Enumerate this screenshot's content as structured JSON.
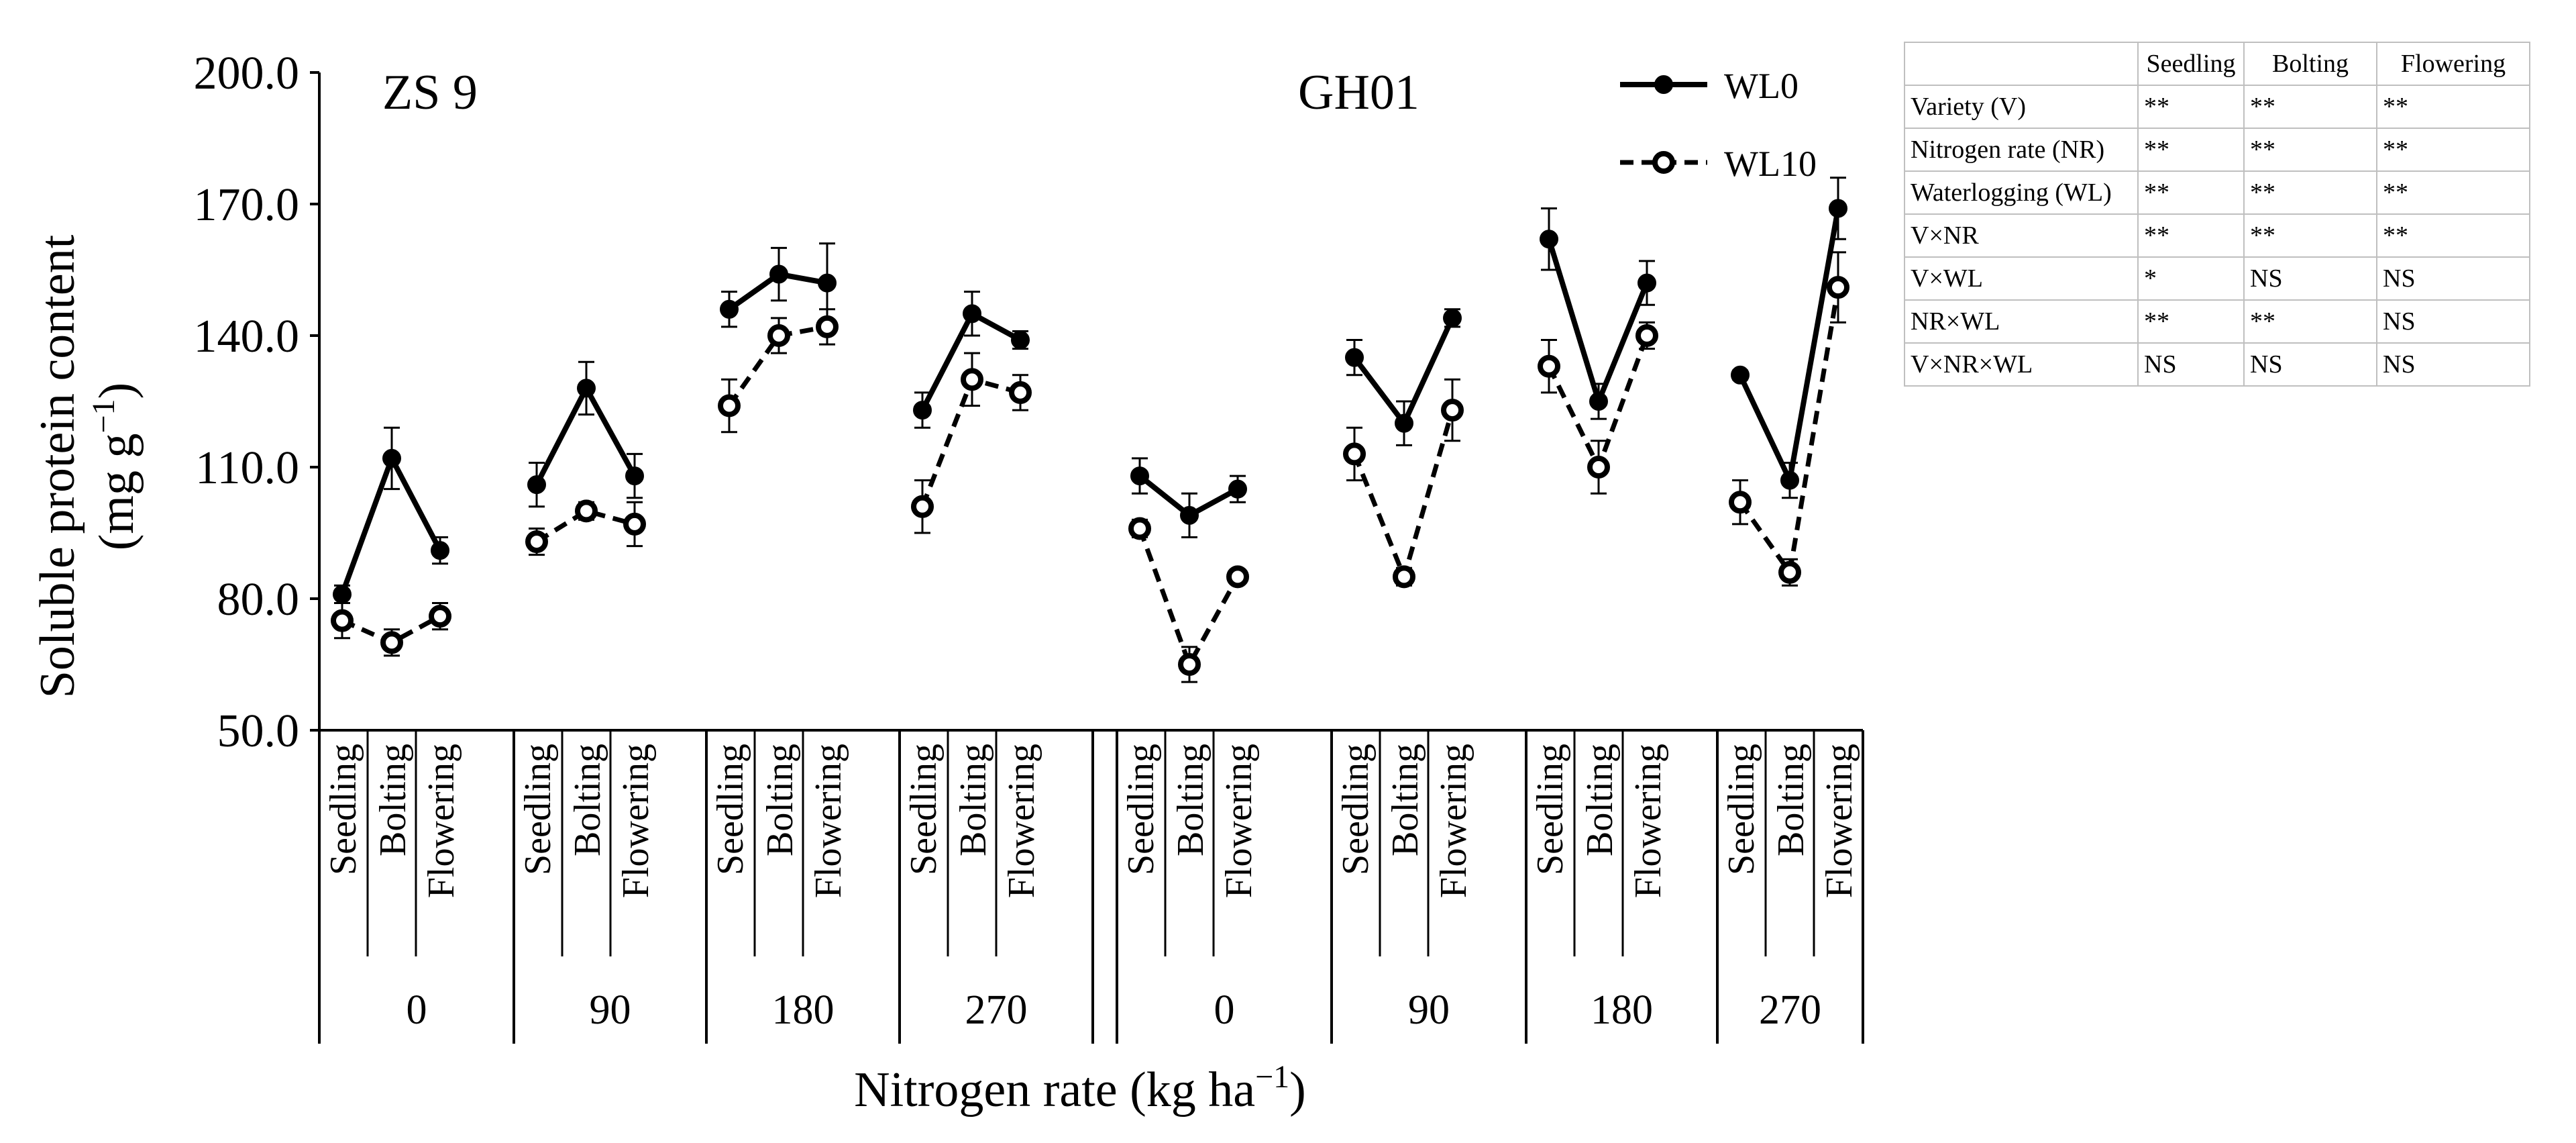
{
  "chart_data": {
    "type": "line",
    "ylabel_line1": "Soluble protein content",
    "ylabel_line2_prefix": "(mg g",
    "ylabel_line2_sup": "−1",
    "ylabel_line2_suffix": ")",
    "xlabel_prefix": "Nitrogen rate (kg ha",
    "xlabel_sup": "−1",
    "xlabel_suffix": ")",
    "ylim": [
      50,
      200
    ],
    "yticks": [
      "50.0",
      "80.0",
      "110.0",
      "140.0",
      "170.0",
      "200.0"
    ],
    "stages": [
      "Seedling",
      "Bolting",
      "Flowering"
    ],
    "varieties": [
      "ZS 9",
      "GH01"
    ],
    "nitrogen_rates": [
      "0",
      "90",
      "180",
      "270"
    ],
    "legend": {
      "solid": "WL0",
      "dashed": "WL10"
    },
    "series": [
      {
        "name": "WL0",
        "style": "solid",
        "marker": "filled-circle",
        "groups": [
          {
            "variety": "ZS 9",
            "nitrogen": "0",
            "values": [
              81,
              112,
              91
            ],
            "errors": [
              2,
              7,
              3
            ]
          },
          {
            "variety": "ZS 9",
            "nitrogen": "90",
            "values": [
              106,
              128,
              108
            ],
            "errors": [
              5,
              6,
              5
            ]
          },
          {
            "variety": "ZS 9",
            "nitrogen": "180",
            "values": [
              146,
              154,
              152
            ],
            "errors": [
              4,
              6,
              9
            ]
          },
          {
            "variety": "ZS 9",
            "nitrogen": "270",
            "values": [
              123,
              145,
              139
            ],
            "errors": [
              4,
              5,
              2
            ]
          },
          {
            "variety": "GH01",
            "nitrogen": "0",
            "values": [
              108,
              99,
              105
            ],
            "errors": [
              4,
              5,
              3
            ]
          },
          {
            "variety": "GH01",
            "nitrogen": "90",
            "values": [
              135,
              120,
              144
            ],
            "errors": [
              4,
              5,
              2
            ]
          },
          {
            "variety": "GH01",
            "nitrogen": "180",
            "values": [
              162,
              125,
              152
            ],
            "errors": [
              7,
              4,
              5
            ]
          },
          {
            "variety": "GH01",
            "nitrogen": "270",
            "values": [
              131,
              107,
              169
            ],
            "errors": [
              1,
              4,
              7
            ]
          }
        ]
      },
      {
        "name": "WL10",
        "style": "dashed",
        "marker": "open-circle",
        "groups": [
          {
            "variety": "ZS 9",
            "nitrogen": "0",
            "values": [
              75,
              70,
              76
            ],
            "errors": [
              4,
              3,
              3
            ]
          },
          {
            "variety": "ZS 9",
            "nitrogen": "90",
            "values": [
              93,
              100,
              97
            ],
            "errors": [
              3,
              2,
              5
            ]
          },
          {
            "variety": "ZS 9",
            "nitrogen": "180",
            "values": [
              124,
              140,
              142
            ],
            "errors": [
              6,
              4,
              4
            ]
          },
          {
            "variety": "ZS 9",
            "nitrogen": "270",
            "values": [
              101,
              130,
              127
            ],
            "errors": [
              6,
              6,
              4
            ]
          },
          {
            "variety": "GH01",
            "nitrogen": "0",
            "values": [
              96,
              65,
              85
            ],
            "errors": [
              2,
              4,
              1
            ]
          },
          {
            "variety": "GH01",
            "nitrogen": "90",
            "values": [
              113,
              85,
              123
            ],
            "errors": [
              6,
              2,
              7
            ]
          },
          {
            "variety": "GH01",
            "nitrogen": "180",
            "values": [
              133,
              110,
              140
            ],
            "errors": [
              6,
              6,
              3
            ]
          },
          {
            "variety": "GH01",
            "nitrogen": "270",
            "values": [
              102,
              86,
              151
            ],
            "errors": [
              5,
              3,
              8
            ]
          }
        ]
      }
    ]
  },
  "table": {
    "headers": [
      "",
      "Seedling",
      "Bolting",
      "Flowering"
    ],
    "rows": [
      {
        "label": "Variety (V)",
        "cells": [
          "**",
          "**",
          "**"
        ]
      },
      {
        "label": "Nitrogen rate (NR)",
        "cells": [
          "**",
          "**",
          "**"
        ]
      },
      {
        "label": "Waterlogging (WL)",
        "cells": [
          "**",
          "**",
          "**"
        ]
      },
      {
        "label": "V×NR",
        "cells": [
          "**",
          "**",
          "**"
        ]
      },
      {
        "label": "V×WL",
        "cells": [
          "*",
          "NS",
          "NS"
        ]
      },
      {
        "label": "NR×WL",
        "cells": [
          "**",
          "**",
          "NS"
        ]
      },
      {
        "label": "V×NR×WL",
        "cells": [
          "NS",
          "NS",
          "NS"
        ]
      }
    ]
  }
}
